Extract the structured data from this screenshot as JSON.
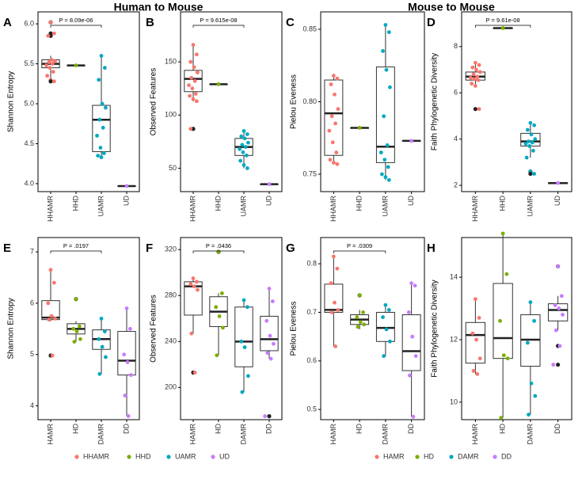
{
  "headers": [
    "Human to Mouse",
    "Mouse to Mouse"
  ],
  "chart_data": [
    {
      "type": "box",
      "panel": "A",
      "ylabel": "Shannon Entropy",
      "categories": [
        "HHAMR",
        "HHD",
        "UAMR",
        "UD"
      ],
      "colors": [
        "#f8766d",
        "#7cae00",
        "#00a9c0",
        "#c77cff"
      ],
      "ylim": [
        3.9,
        6.15
      ],
      "yticks": [
        {
          "value": 4,
          "label": "4.0"
        },
        4.5,
        {
          "value": 5,
          "label": "5.0"
        },
        5.5,
        {
          "value": 6,
          "label": "6.0"
        }
      ],
      "boxes": [
        {
          "min": 5.3,
          "q1": 5.45,
          "median": 5.5,
          "q3": 5.55,
          "max": 5.6
        },
        {
          "min": 5.48,
          "q1": 5.48,
          "median": 5.48,
          "q3": 5.48,
          "max": 5.48
        },
        {
          "min": 4.33,
          "q1": 4.4,
          "median": 4.8,
          "q3": 4.98,
          "max": 5.6
        },
        {
          "min": 3.97,
          "q1": 3.97,
          "median": 3.97,
          "q3": 3.97,
          "max": 3.97
        }
      ],
      "points": [
        [
          6.02,
          5.88,
          5.85,
          5.55,
          5.53,
          5.52,
          5.5,
          5.48,
          5.45,
          5.4,
          5.35,
          5.3,
          5.28
        ],
        [
          5.48
        ],
        [
          5.6,
          5.45,
          5.3,
          5.0,
          4.95,
          4.8,
          4.7,
          4.6,
          4.45,
          4.38,
          4.35,
          4.33
        ],
        [
          3.97
        ]
      ],
      "pvalue": {
        "label": "P = 8.09e-06",
        "between": [
          "HHAMR",
          "UAMR"
        ]
      }
    },
    {
      "type": "box",
      "panel": "B",
      "ylabel": "Observed Features",
      "categories": [
        "HHAMR",
        "HHD",
        "UAMR",
        "UD"
      ],
      "colors": [
        "#f8766d",
        "#7cae00",
        "#00a9c0",
        "#c77cff"
      ],
      "ylim": [
        28,
        197
      ],
      "yticks": [
        50,
        100,
        150
      ],
      "boxes": [
        {
          "min": 113,
          "q1": 122,
          "median": 134,
          "q3": 142,
          "max": 166
        },
        {
          "min": 129,
          "q1": 129,
          "median": 129,
          "q3": 129,
          "max": 129
        },
        {
          "min": 50,
          "q1": 62,
          "median": 70,
          "q3": 78,
          "max": 85
        },
        {
          "min": 35,
          "q1": 35,
          "median": 35,
          "q3": 35,
          "max": 35
        }
      ],
      "points": [
        [
          166,
          157,
          150,
          145,
          140,
          135,
          132,
          128,
          125,
          120,
          118,
          115,
          113,
          87
        ],
        [
          129
        ],
        [
          85,
          82,
          80,
          78,
          74,
          72,
          70,
          68,
          65,
          62,
          57,
          53,
          50
        ],
        [
          35
        ]
      ],
      "pvalue": {
        "label": "P = 9.615e-08",
        "between": [
          "HHAMR",
          "UAMR"
        ]
      }
    },
    {
      "type": "box",
      "panel": "C",
      "ylabel": "Pielou Eveness",
      "categories": [
        "HHAMR",
        "HHD",
        "UAMR",
        "UD"
      ],
      "colors": [
        "#f8766d",
        "#7cae00",
        "#00a9c0",
        "#c77cff"
      ],
      "ylim": [
        0.738,
        0.862
      ],
      "yticks": [
        0.75,
        {
          "value": 0.8,
          "label": "0.80"
        },
        0.85
      ],
      "boxes": [
        {
          "min": 0.757,
          "q1": 0.763,
          "median": 0.792,
          "q3": 0.815,
          "max": 0.818
        },
        {
          "min": 0.782,
          "q1": 0.782,
          "median": 0.782,
          "q3": 0.782,
          "max": 0.782
        },
        {
          "min": 0.746,
          "q1": 0.758,
          "median": 0.769,
          "q3": 0.824,
          "max": 0.853
        },
        {
          "min": 0.773,
          "q1": 0.773,
          "median": 0.773,
          "q3": 0.773,
          "max": 0.773
        }
      ],
      "points": [
        [
          0.818,
          0.816,
          0.812,
          0.805,
          0.795,
          0.79,
          0.785,
          0.78,
          0.772,
          0.765,
          0.76,
          0.758,
          0.757
        ],
        [
          0.782
        ],
        [
          0.853,
          0.848,
          0.835,
          0.822,
          0.81,
          0.79,
          0.77,
          0.765,
          0.76,
          0.755,
          0.75,
          0.748,
          0.746
        ],
        [
          0.773
        ]
      ]
    },
    {
      "type": "box",
      "panel": "D",
      "ylabel": "Faith Phylogenetic Diversity",
      "categories": [
        "HHAMR",
        "HHD",
        "UAMR",
        "UD"
      ],
      "colors": [
        "#f8766d",
        "#7cae00",
        "#00a9c0",
        "#c77cff"
      ],
      "ylim": [
        1.73,
        9.5
      ],
      "yticks": [
        2,
        4,
        6,
        8
      ],
      "boxes": [
        {
          "min": 6.3,
          "q1": 6.55,
          "median": 6.7,
          "q3": 6.9,
          "max": 7.3
        },
        {
          "min": 8.8,
          "q1": 8.8,
          "median": 8.8,
          "q3": 8.8,
          "max": 8.8
        },
        {
          "min": 3.2,
          "q1": 3.7,
          "median": 3.9,
          "q3": 4.25,
          "max": 4.7
        },
        {
          "min": 2.1,
          "q1": 2.1,
          "median": 2.1,
          "q3": 2.1,
          "max": 2.1
        }
      ],
      "points": [
        [
          7.3,
          7.2,
          7.1,
          7.0,
          6.9,
          6.8,
          6.7,
          6.65,
          6.6,
          6.55,
          6.4,
          6.3,
          5.3
        ],
        [
          8.8
        ],
        [
          4.7,
          4.6,
          4.4,
          4.2,
          4.0,
          3.9,
          3.85,
          3.8,
          3.7,
          3.5,
          3.2,
          2.6,
          2.5
        ],
        [
          2.1
        ]
      ],
      "pvalue": {
        "label": "P = 9.61e-08",
        "between": [
          "HHAMR",
          "UAMR"
        ]
      }
    },
    {
      "type": "box",
      "panel": "E",
      "ylabel": "Shannon Entropy",
      "categories": [
        "HAMR",
        "HD",
        "DAMR",
        "DD"
      ],
      "colors": [
        "#f8766d",
        "#7cae00",
        "#00a9c0",
        "#c77cff"
      ],
      "ylim": [
        3.73,
        7.28
      ],
      "yticks": [
        4,
        5,
        6,
        7
      ],
      "boxes": [
        {
          "min": 5.65,
          "q1": 5.68,
          "median": 5.72,
          "q3": 6.05,
          "max": 6.65
        },
        {
          "min": 5.25,
          "q1": 5.4,
          "median": 5.5,
          "q3": 5.6,
          "max": 5.65
        },
        {
          "min": 4.62,
          "q1": 5.1,
          "median": 5.3,
          "q3": 5.48,
          "max": 5.7
        },
        {
          "min": 3.8,
          "q1": 4.6,
          "median": 4.88,
          "q3": 5.45,
          "max": 5.9
        }
      ],
      "points": [
        [
          6.65,
          6.4,
          6.0,
          5.75,
          5.7,
          5.68,
          4.98
        ],
        [
          6.08,
          5.55,
          5.5,
          5.45,
          5.3,
          5.25
        ],
        [
          5.7,
          5.45,
          5.3,
          5.15,
          4.95,
          4.62
        ],
        [
          5.9,
          5.5,
          5.0,
          4.85,
          4.6,
          4.2,
          3.8
        ]
      ],
      "pvalue": {
        "label": "P = .0197",
        "between": [
          "HAMR",
          "DAMR"
        ]
      }
    },
    {
      "type": "box",
      "panel": "F",
      "ylabel": "Observed Features",
      "categories": [
        "HAMR",
        "HD",
        "DAMR",
        "DD"
      ],
      "colors": [
        "#f8766d",
        "#7cae00",
        "#00a9c0",
        "#c77cff"
      ],
      "ylim": [
        172,
        330.5
      ],
      "yticks": [
        200,
        240,
        280,
        320
      ],
      "boxes": [
        {
          "min": 247,
          "q1": 263,
          "median": 288,
          "q3": 292,
          "max": 295
        },
        {
          "min": 228,
          "q1": 253,
          "median": 266,
          "q3": 279,
          "max": 282
        },
        {
          "min": 196,
          "q1": 218,
          "median": 240,
          "q3": 270,
          "max": 276
        },
        {
          "min": 225,
          "q1": 232,
          "median": 242,
          "q3": 262,
          "max": 286
        }
      ],
      "points": [
        [
          295,
          292,
          290,
          288,
          285,
          247,
          213
        ],
        [
          318,
          282,
          270,
          262,
          252,
          228
        ],
        [
          276,
          270,
          240,
          235,
          210,
          196
        ],
        [
          286,
          275,
          258,
          245,
          238,
          230,
          225,
          175
        ]
      ],
      "pvalue": {
        "label": "P = .0436",
        "between": [
          "HAMR",
          "DAMR"
        ]
      }
    },
    {
      "type": "box",
      "panel": "G",
      "ylabel": "Pielou Eveness",
      "categories": [
        "HAMR",
        "HD",
        "DAMR",
        "DD"
      ],
      "colors": [
        "#f8766d",
        "#7cae00",
        "#00a9c0",
        "#c77cff"
      ],
      "ylim": [
        0.479,
        0.854
      ],
      "yticks": [
        0.5,
        0.6,
        0.7,
        0.8
      ],
      "boxes": [
        {
          "min": 0.63,
          "q1": 0.7,
          "median": 0.705,
          "q3": 0.758,
          "max": 0.815
        },
        {
          "min": 0.665,
          "q1": 0.675,
          "median": 0.685,
          "q3": 0.695,
          "max": 0.705
        },
        {
          "min": 0.61,
          "q1": 0.64,
          "median": 0.668,
          "q3": 0.7,
          "max": 0.715
        },
        {
          "min": 0.485,
          "q1": 0.58,
          "median": 0.62,
          "q3": 0.695,
          "max": 0.76
        }
      ],
      "points": [
        [
          0.815,
          0.79,
          0.76,
          0.72,
          0.705,
          0.7,
          0.63
        ],
        [
          0.735,
          0.7,
          0.69,
          0.68,
          0.675,
          0.67
        ],
        [
          0.715,
          0.705,
          0.69,
          0.665,
          0.64,
          0.61
        ],
        [
          0.76,
          0.755,
          0.7,
          0.65,
          0.61,
          0.57,
          0.485
        ]
      ],
      "pvalue": {
        "label": "P = .0309",
        "between": [
          "HAMR",
          "DAMR"
        ]
      }
    },
    {
      "type": "box",
      "panel": "H",
      "ylabel": "Faith Phylogenetic Diversity",
      "categories": [
        "HAMR",
        "HD",
        "DAMR",
        "DD"
      ],
      "colors": [
        "#f8766d",
        "#7cae00",
        "#00a9c0",
        "#c77cff"
      ],
      "ylim": [
        9.44,
        15.27
      ],
      "yticks": [
        10,
        12,
        14
      ],
      "boxes": [
        {
          "min": 10.9,
          "q1": 11.25,
          "median": 12.15,
          "q3": 12.55,
          "max": 13.3
        },
        {
          "min": 9.5,
          "q1": 11.4,
          "median": 12.05,
          "q3": 13.8,
          "max": 15.4
        },
        {
          "min": 9.6,
          "q1": 11.15,
          "median": 12.0,
          "q3": 12.8,
          "max": 13.2
        },
        {
          "min": 12.3,
          "q1": 12.6,
          "median": 12.95,
          "q3": 13.15,
          "max": 13.4
        }
      ],
      "points": [
        [
          13.3,
          12.7,
          12.2,
          12.0,
          11.4,
          11.0,
          10.9
        ],
        [
          15.4,
          14.1,
          12.6,
          11.5,
          11.4,
          9.5
        ],
        [
          13.2,
          12.6,
          11.9,
          10.6,
          10.2,
          9.6
        ],
        [
          14.35,
          13.4,
          13.1,
          13.0,
          12.8,
          12.3,
          11.8,
          11.2
        ]
      ]
    }
  ]
}
